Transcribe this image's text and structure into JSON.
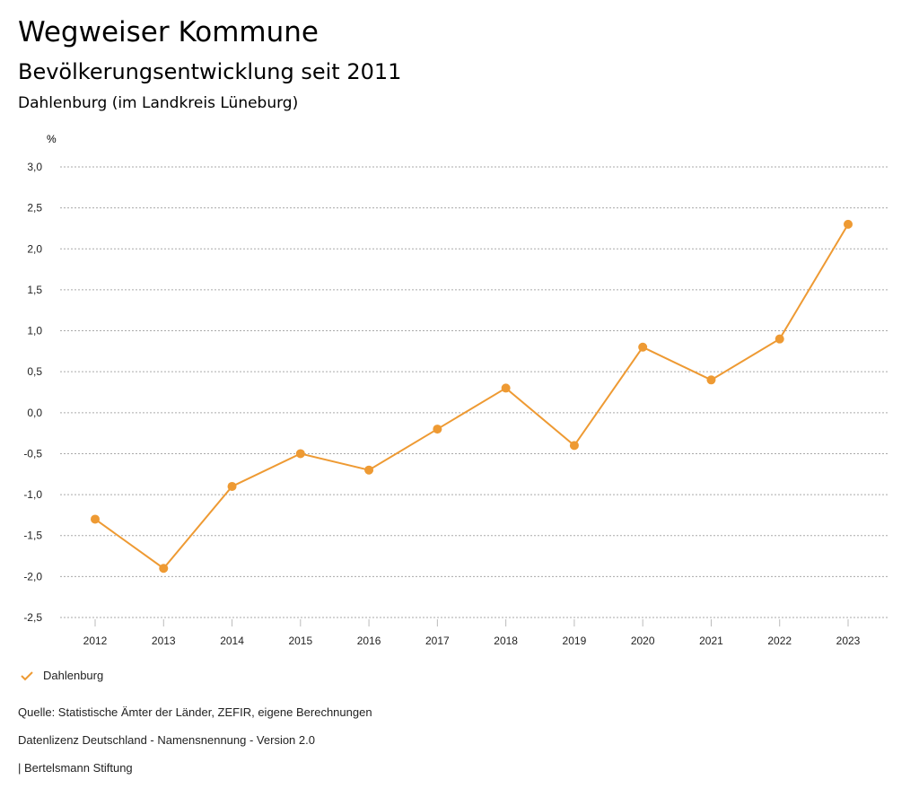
{
  "title": "Wegweiser Kommune",
  "subtitle": "Bevölkerungsentwicklung seit 2011",
  "region": "Dahlenburg (im Landkreis Lüneburg)",
  "chart_data": {
    "type": "line",
    "ylabel": "%",
    "ylim": [
      -2.5,
      3.0
    ],
    "yticks": [
      "3,0",
      "2,5",
      "2,0",
      "1,5",
      "1,0",
      "0,5",
      "0,0",
      "-0,5",
      "-1,0",
      "-1,5",
      "-2,0",
      "-2,5"
    ],
    "ytick_values": [
      3.0,
      2.5,
      2.0,
      1.5,
      1.0,
      0.5,
      0.0,
      -0.5,
      -1.0,
      -1.5,
      -2.0,
      -2.5
    ],
    "categories": [
      "2012",
      "2013",
      "2014",
      "2015",
      "2016",
      "2017",
      "2018",
      "2019",
      "2020",
      "2021",
      "2022",
      "2023"
    ],
    "series": [
      {
        "name": "Dahlenburg",
        "color": "#EE9A33",
        "values": [
          -1.3,
          -1.9,
          -0.9,
          -0.5,
          -0.7,
          -0.2,
          0.3,
          -0.4,
          0.8,
          0.4,
          0.9,
          2.3
        ]
      }
    ],
    "grid": true,
    "legend": "bottom-left"
  },
  "footer": {
    "source": "Quelle: Statistische Ämter der Länder, ZEFIR, eigene Berechnungen",
    "license": "Datenlizenz Deutschland - Namensnennung - Version 2.0",
    "org": "| Bertelsmann Stiftung"
  }
}
